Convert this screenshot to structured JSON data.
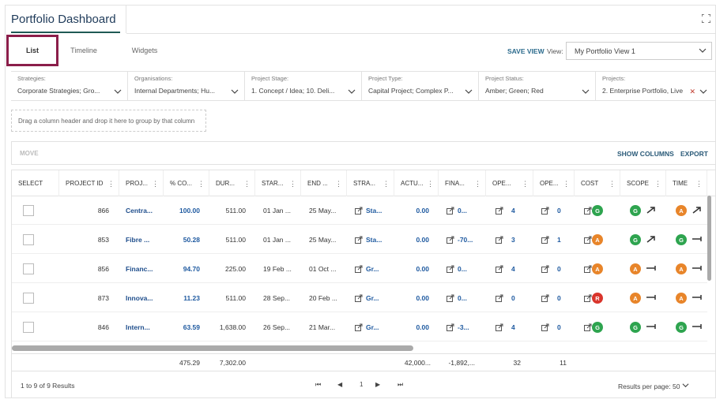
{
  "title": "Portfolio Dashboard",
  "tabs": [
    "List",
    "Timeline",
    "Widgets"
  ],
  "save_view": "SAVE VIEW",
  "view_label": "View:",
  "view_value": "My Portfolio View 1",
  "filters": [
    {
      "label": "Strategies:",
      "value": "Corporate Strategies; Gro..."
    },
    {
      "label": "Organisations:",
      "value": "Internal Departments; Hu..."
    },
    {
      "label": "Project Stage:",
      "value": "1. Concept / Idea; 10. Deli..."
    },
    {
      "label": "Project Type:",
      "value": "Capital Project; Complex P..."
    },
    {
      "label": "Project Status:",
      "value": "Amber; Green; Red"
    },
    {
      "label": "Projects:",
      "value": "2. Enterprise Portfolio, Live"
    }
  ],
  "group_hint": "Drag a column header and drop it here to group by that column",
  "toolbar": {
    "move": "MOVE",
    "show_columns": "SHOW COLUMNS",
    "export": "EXPORT"
  },
  "columns": [
    "SELECT",
    "PROJECT ID",
    "PROJ...",
    "% CO...",
    "DUR...",
    "STAR...",
    "END ...",
    "STRA...",
    "ACTU...",
    "FINA...",
    "OPE...",
    "OPE...",
    "COST",
    "SCOPE",
    "TIME"
  ],
  "rows": [
    {
      "id": "866",
      "name": "Centra...",
      "pct": "100.00",
      "dur": "511.00",
      "start": "01 Jan ...",
      "end": "25 May...",
      "stra": "Sta...",
      "actu": "0.00",
      "fina": "0...",
      "ope1": "4",
      "ope2": "0",
      "cost": "G",
      "scope": "G",
      "scope_trend": "up",
      "time": "A",
      "time_trend": "up"
    },
    {
      "id": "853",
      "name": "Fibre ...",
      "pct": "50.28",
      "dur": "511.00",
      "start": "01 Jan ...",
      "end": "25 May...",
      "stra": "Sta...",
      "actu": "0.00",
      "fina": "-70...",
      "ope1": "3",
      "ope2": "1",
      "cost": "A",
      "scope": "G",
      "scope_trend": "up",
      "time": "G",
      "time_trend": "flat"
    },
    {
      "id": "856",
      "name": "Financ...",
      "pct": "94.70",
      "dur": "225.00",
      "start": "19 Feb ...",
      "end": "01 Oct ...",
      "stra": "Gr...",
      "actu": "0.00",
      "fina": "0...",
      "ope1": "4",
      "ope2": "0",
      "cost": "A",
      "scope": "A",
      "scope_trend": "flat",
      "time": "A",
      "time_trend": "flat"
    },
    {
      "id": "873",
      "name": "Innova...",
      "pct": "11.23",
      "dur": "511.00",
      "start": "28 Sep...",
      "end": "20 Feb ...",
      "stra": "Gr...",
      "actu": "0.00",
      "fina": "0...",
      "ope1": "0",
      "ope2": "0",
      "cost": "R",
      "scope": "A",
      "scope_trend": "flat",
      "time": "A",
      "time_trend": "flat"
    },
    {
      "id": "846",
      "name": "Intern...",
      "pct": "63.59",
      "dur": "1,638.00",
      "start": "26 Sep...",
      "end": "21 Mar...",
      "stra": "Gr...",
      "actu": "0.00",
      "fina": "-3...",
      "ope1": "4",
      "ope2": "0",
      "cost": "G",
      "scope": "G",
      "scope_trend": "flat",
      "time": "G",
      "time_trend": "flat"
    }
  ],
  "totals": {
    "pct": "475.29",
    "dur": "7,302.00",
    "actu": "42,000...",
    "fina": "-1,892,...",
    "ope1": "32",
    "ope2": "11"
  },
  "pager": {
    "results": "1 to 9 of 9 Results",
    "page": "1",
    "rpp_label": "Results per page:",
    "rpp_value": "50"
  },
  "colors": {
    "accent": "#1f5a55",
    "tab_border": "#8b1e4a",
    "green": "#2ea44f",
    "amber": "#e8852a",
    "red": "#d9352c"
  }
}
